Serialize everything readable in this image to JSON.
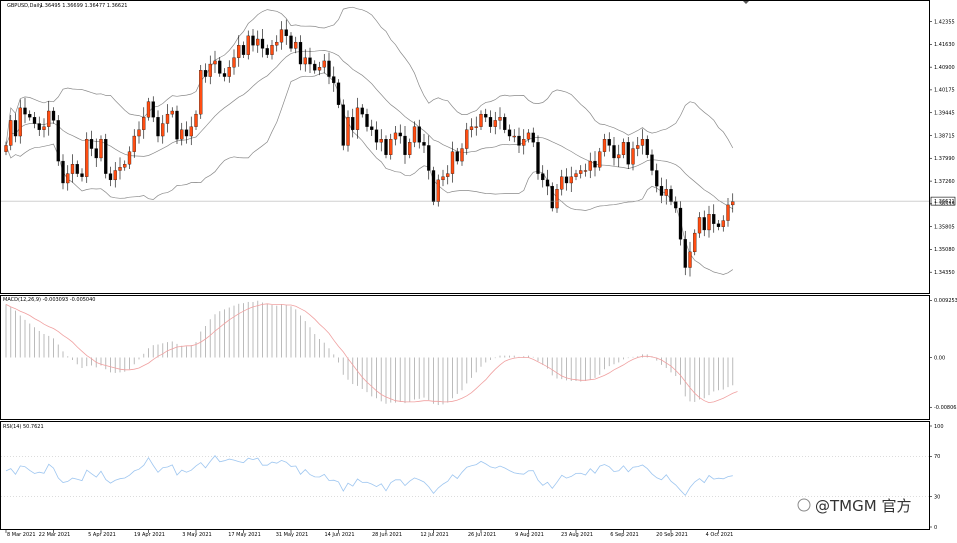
{
  "chart_data": {
    "type": "candlestick",
    "symbol_label": "GBPUSD,Daily",
    "ohlc_label": "1.36495 1.36699 1.36477 1.36621",
    "current_price_label": "1.36621",
    "current_price": 1.36621,
    "price_axis": {
      "range": [
        1.3375,
        1.4295
      ],
      "ticks": [
        "1.42355",
        "1.41630",
        "1.40900",
        "1.40175",
        "1.39445",
        "1.38715",
        "1.37990",
        "1.37260",
        "1.36535",
        "1.35805",
        "1.35080",
        "1.34350"
      ]
    },
    "date_ticks": [
      {
        "label": "8 Mar 2021",
        "index": 0
      },
      {
        "label": "22 Mar 2021",
        "index": 10
      },
      {
        "label": "5 Apr 2021",
        "index": 20
      },
      {
        "label": "19 Apr 2021",
        "index": 30
      },
      {
        "label": "3 May 2021",
        "index": 40
      },
      {
        "label": "17 May 2021",
        "index": 50
      },
      {
        "label": "31 May 2021",
        "index": 60
      },
      {
        "label": "14 Jun 2021",
        "index": 70
      },
      {
        "label": "28 Jun 2021",
        "index": 80
      },
      {
        "label": "12 Jul 2021",
        "index": 90
      },
      {
        "label": "26 Jul 2021",
        "index": 100
      },
      {
        "label": "9 Aug 2021",
        "index": 110
      },
      {
        "label": "23 Aug 2021",
        "index": 120
      },
      {
        "label": "6 Sep 2021",
        "index": 130
      },
      {
        "label": "20 Sep 2021",
        "index": 140
      },
      {
        "label": "4 Oct 2021",
        "index": 150
      }
    ],
    "bars_close": [
      1.384,
      1.392,
      1.387,
      1.396,
      1.394,
      1.393,
      1.391,
      1.389,
      1.39,
      1.395,
      1.392,
      1.379,
      1.372,
      1.375,
      1.378,
      1.375,
      1.374,
      1.386,
      1.383,
      1.38,
      1.386,
      1.375,
      1.373,
      1.376,
      1.377,
      1.378,
      1.382,
      1.387,
      1.389,
      1.393,
      1.398,
      1.393,
      1.387,
      1.391,
      1.394,
      1.395,
      1.386,
      1.389,
      1.387,
      1.39,
      1.394,
      1.408,
      1.406,
      1.41,
      1.411,
      1.407,
      1.406,
      1.409,
      1.412,
      1.416,
      1.413,
      1.419,
      1.416,
      1.418,
      1.415,
      1.413,
      1.416,
      1.417,
      1.421,
      1.419,
      1.415,
      1.417,
      1.41,
      1.412,
      1.41,
      1.408,
      1.409,
      1.411,
      1.406,
      1.404,
      1.397,
      1.384,
      1.393,
      1.389,
      1.396,
      1.394,
      1.39,
      1.389,
      1.385,
      1.386,
      1.381,
      1.386,
      1.388,
      1.387,
      1.381,
      1.385,
      1.39,
      1.385,
      1.384,
      1.376,
      1.366,
      1.373,
      1.374,
      1.375,
      1.382,
      1.379,
      1.383,
      1.389,
      1.39,
      1.39,
      1.394,
      1.393,
      1.39,
      1.392,
      1.393,
      1.389,
      1.387,
      1.387,
      1.384,
      1.386,
      1.388,
      1.385,
      1.375,
      1.373,
      1.371,
      1.364,
      1.37,
      1.374,
      1.372,
      1.374,
      1.375,
      1.376,
      1.376,
      1.379,
      1.377,
      1.382,
      1.386,
      1.384,
      1.38,
      1.381,
      1.385,
      1.378,
      1.383,
      1.384,
      1.386,
      1.381,
      1.376,
      1.371,
      1.368,
      1.37,
      1.366,
      1.364,
      1.354,
      1.345,
      1.35,
      1.356,
      1.361,
      1.357,
      1.362,
      1.359,
      1.358,
      1.36,
      1.365,
      1.366
    ],
    "macd": {
      "label": "MACD(12,26,9) -0.003093 -0.005040",
      "range": [
        -0.0098,
        0.0098
      ],
      "ticks": [
        "0.009253",
        "0.00",
        "-0.008063"
      ],
      "hist": [
        0.0086,
        0.0082,
        0.0076,
        0.0068,
        0.0061,
        0.0055,
        0.0049,
        0.0043,
        0.0038,
        0.0035,
        0.0031,
        0.0021,
        0.001,
        0.0002,
        -0.0004,
        -0.0011,
        -0.0017,
        -0.0014,
        -0.0013,
        -0.0016,
        -0.0013,
        -0.0019,
        -0.0024,
        -0.0025,
        -0.0024,
        -0.0023,
        -0.0019,
        -0.0011,
        -0.0003,
        0.0006,
        0.0015,
        0.002,
        0.0021,
        0.0023,
        0.0025,
        0.0026,
        0.0022,
        0.0019,
        0.0018,
        0.002,
        0.0025,
        0.0042,
        0.0051,
        0.0062,
        0.007,
        0.0075,
        0.0078,
        0.0081,
        0.0084,
        0.0087,
        0.0088,
        0.009,
        0.009,
        0.0092,
        0.0089,
        0.0087,
        0.0085,
        0.0084,
        0.0086,
        0.0085,
        0.0083,
        0.0078,
        0.0068,
        0.0059,
        0.0049,
        0.0038,
        0.003,
        0.0024,
        0.0015,
        0.0005,
        -0.0008,
        -0.0028,
        -0.0036,
        -0.0043,
        -0.0046,
        -0.0051,
        -0.0056,
        -0.0063,
        -0.0066,
        -0.0071,
        -0.0075,
        -0.0073,
        -0.0073,
        -0.0072,
        -0.0074,
        -0.0072,
        -0.0068,
        -0.0067,
        -0.0065,
        -0.0069,
        -0.0075,
        -0.0077,
        -0.0076,
        -0.0073,
        -0.0066,
        -0.0059,
        -0.0053,
        -0.0042,
        -0.0033,
        -0.0024,
        -0.0015,
        -0.0008,
        -0.0004,
        -0.0001,
        0.0003,
        0.0003,
        0.0003,
        0.0003,
        0.0001,
        0.0002,
        0.0003,
        0.0001,
        -0.0006,
        -0.0012,
        -0.0018,
        -0.0029,
        -0.0034,
        -0.0035,
        -0.0037,
        -0.0038,
        -0.0038,
        -0.0039,
        -0.0038,
        -0.0036,
        -0.0033,
        -0.0028,
        -0.0019,
        -0.0014,
        -0.0011,
        -0.0008,
        -0.0003,
        -0.0001,
        0.0001,
        0.0002,
        0.0005,
        0.0005,
        0.0002,
        -0.0005,
        -0.0012,
        -0.0017,
        -0.0024,
        -0.003,
        -0.0044,
        -0.0063,
        -0.0071,
        -0.0072,
        -0.0068,
        -0.0066,
        -0.0061,
        -0.0055,
        -0.0053,
        -0.0052,
        -0.0048,
        -0.0045
      ],
      "signal": [
        0.0086,
        0.0082,
        0.0079,
        0.0075,
        0.0072,
        0.0068,
        0.0063,
        0.0059,
        0.0054,
        0.005,
        0.0047,
        0.0042,
        0.0036,
        0.0031,
        0.0025,
        0.0017,
        0.001,
        0.0003,
        -0.0002,
        -0.0008,
        -0.0011,
        -0.0013,
        -0.0015,
        -0.0017,
        -0.0019,
        -0.002,
        -0.002,
        -0.0019,
        -0.0017,
        -0.0013,
        -0.0009,
        -0.0003,
        0.0002,
        0.0006,
        0.0011,
        0.0014,
        0.0017,
        0.0018,
        0.0019,
        0.0019,
        0.0021,
        0.0025,
        0.003,
        0.0036,
        0.0043,
        0.0049,
        0.0055,
        0.0061,
        0.0066,
        0.0071,
        0.0075,
        0.0079,
        0.0082,
        0.0084,
        0.0086,
        0.0087,
        0.0086,
        0.0086,
        0.0086,
        0.0085,
        0.0085,
        0.0083,
        0.0079,
        0.0075,
        0.0069,
        0.0062,
        0.0054,
        0.0047,
        0.0039,
        0.0028,
        0.0018,
        0.0009,
        -0.0002,
        -0.0012,
        -0.0022,
        -0.0032,
        -0.004,
        -0.0047,
        -0.0054,
        -0.006,
        -0.0064,
        -0.0067,
        -0.007,
        -0.0071,
        -0.0072,
        -0.0072,
        -0.0072,
        -0.0071,
        -0.007,
        -0.007,
        -0.0071,
        -0.0071,
        -0.0072,
        -0.0072,
        -0.0071,
        -0.0069,
        -0.0066,
        -0.0062,
        -0.0057,
        -0.005,
        -0.0043,
        -0.0036,
        -0.0027,
        -0.0019,
        -0.0012,
        -0.0006,
        -0.0003,
        -0.0001,
        0.0,
        0.0,
        0.0,
        -0.0003,
        -0.0007,
        -0.0011,
        -0.0015,
        -0.002,
        -0.0025,
        -0.003,
        -0.0033,
        -0.0035,
        -0.0036,
        -0.0037,
        -0.0037,
        -0.0036,
        -0.0035,
        -0.0032,
        -0.0029,
        -0.0025,
        -0.002,
        -0.0016,
        -0.0012,
        -0.0007,
        -0.0003,
        0.0,
        0.0002,
        0.0002,
        0.0001,
        -0.0001,
        -0.0004,
        -0.0009,
        -0.0014,
        -0.0021,
        -0.0029,
        -0.0039,
        -0.0049,
        -0.0058,
        -0.0065,
        -0.007,
        -0.0073,
        -0.0072,
        -0.0069,
        -0.0066,
        -0.0062,
        -0.0058,
        -0.0055
      ]
    },
    "rsi": {
      "label": "RSI(14) 50.7621",
      "range": [
        0,
        100
      ],
      "ticks": [
        "100",
        "70",
        "30",
        "0"
      ],
      "values": [
        55.5,
        57.8,
        52.2,
        60.5,
        59.7,
        56.0,
        53.0,
        54.3,
        53.2,
        62.1,
        58.3,
        48.5,
        44.1,
        45.1,
        48.4,
        47.3,
        45.9,
        56.3,
        52.8,
        49.4,
        55.2,
        46.9,
        43.5,
        46.2,
        47.8,
        48.5,
        51.3,
        55.5,
        57.2,
        61.2,
        68.6,
        60.9,
        54.2,
        58.7,
        59.4,
        61.5,
        51.5,
        56.3,
        54.3,
        56.2,
        60.5,
        63.8,
        58.5,
        65.0,
        70.6,
        64.6,
        65.6,
        67.2,
        66.2,
        64.8,
        63.7,
        68.1,
        66.7,
        68.2,
        61.2,
        61.2,
        64.3,
        63.2,
        65.9,
        64.2,
        60.0,
        60.4,
        52.2,
        56.8,
        51.9,
        49.6,
        49.5,
        52.1,
        46.0,
        46.3,
        44.7,
        35.5,
        43.4,
        40.5,
        47.5,
        44.2,
        44.3,
        42.5,
        40.0,
        42.8,
        35.8,
        43.9,
        46.7,
        46.7,
        41.0,
        45.4,
        48.6,
        46.7,
        44.6,
        39.7,
        33.3,
        38.7,
        42.5,
        45.3,
        51.7,
        48.0,
        54.2,
        59.2,
        60.7,
        61.8,
        65.0,
        62.5,
        59.5,
        58.3,
        60.4,
        58.4,
        55.8,
        53.6,
        52.8,
        52.3,
        55.6,
        55.8,
        46.3,
        41.3,
        44.3,
        38.2,
        44.4,
        51.2,
        48.4,
        50.1,
        53.1,
        53.2,
        51.5,
        57.7,
        53.3,
        60.3,
        61.9,
        59.6,
        54.9,
        55.6,
        60.6,
        54.7,
        59.2,
        59.8,
        61.4,
        57.8,
        52.6,
        48.7,
        46.7,
        51.7,
        45.3,
        41.6,
        36.3,
        31.3,
        39.1,
        44.7,
        47.9,
        44.0,
        51.0,
        47.4,
        48.3,
        47.7,
        49.9,
        50.8
      ]
    },
    "watermark": "@TMGM 官方"
  }
}
